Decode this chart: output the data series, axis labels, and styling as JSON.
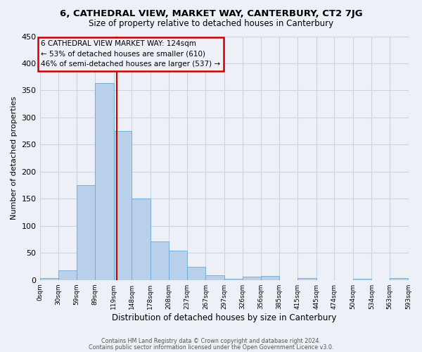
{
  "title": "6, CATHEDRAL VIEW, MARKET WAY, CANTERBURY, CT2 7JG",
  "subtitle": "Size of property relative to detached houses in Canterbury",
  "xlabel": "Distribution of detached houses by size in Canterbury",
  "ylabel": "Number of detached properties",
  "bin_edges": [
    0,
    30,
    59,
    89,
    119,
    148,
    178,
    208,
    237,
    267,
    297,
    326,
    356,
    385,
    415,
    445,
    474,
    504,
    534,
    563,
    593
  ],
  "bar_heights": [
    3,
    18,
    175,
    363,
    275,
    150,
    71,
    54,
    24,
    9,
    2,
    6,
    7,
    0,
    3,
    0,
    0,
    2,
    0,
    3
  ],
  "bar_color": "#b8d0ea",
  "bar_edgecolor": "#6aaad4",
  "grid_color": "#c8d4e4",
  "background_color": "#edf1f7",
  "property_line_x": 124,
  "property_line_color": "#cc0000",
  "annotation_title": "6 CATHEDRAL VIEW MARKET WAY: 124sqm",
  "annotation_line1": "← 53% of detached houses are smaller (610)",
  "annotation_line2": "46% of semi-detached houses are larger (537) →",
  "annotation_box_edgecolor": "#cc0000",
  "ylim": [
    0,
    450
  ],
  "yticks": [
    0,
    50,
    100,
    150,
    200,
    250,
    300,
    350,
    400,
    450
  ],
  "tick_labels": [
    "0sqm",
    "30sqm",
    "59sqm",
    "89sqm",
    "119sqm",
    "148sqm",
    "178sqm",
    "208sqm",
    "237sqm",
    "267sqm",
    "297sqm",
    "326sqm",
    "356sqm",
    "385sqm",
    "415sqm",
    "445sqm",
    "474sqm",
    "504sqm",
    "534sqm",
    "563sqm",
    "593sqm"
  ],
  "footer_line1": "Contains HM Land Registry data © Crown copyright and database right 2024.",
  "footer_line2": "Contains public sector information licensed under the Open Government Licence v3.0."
}
